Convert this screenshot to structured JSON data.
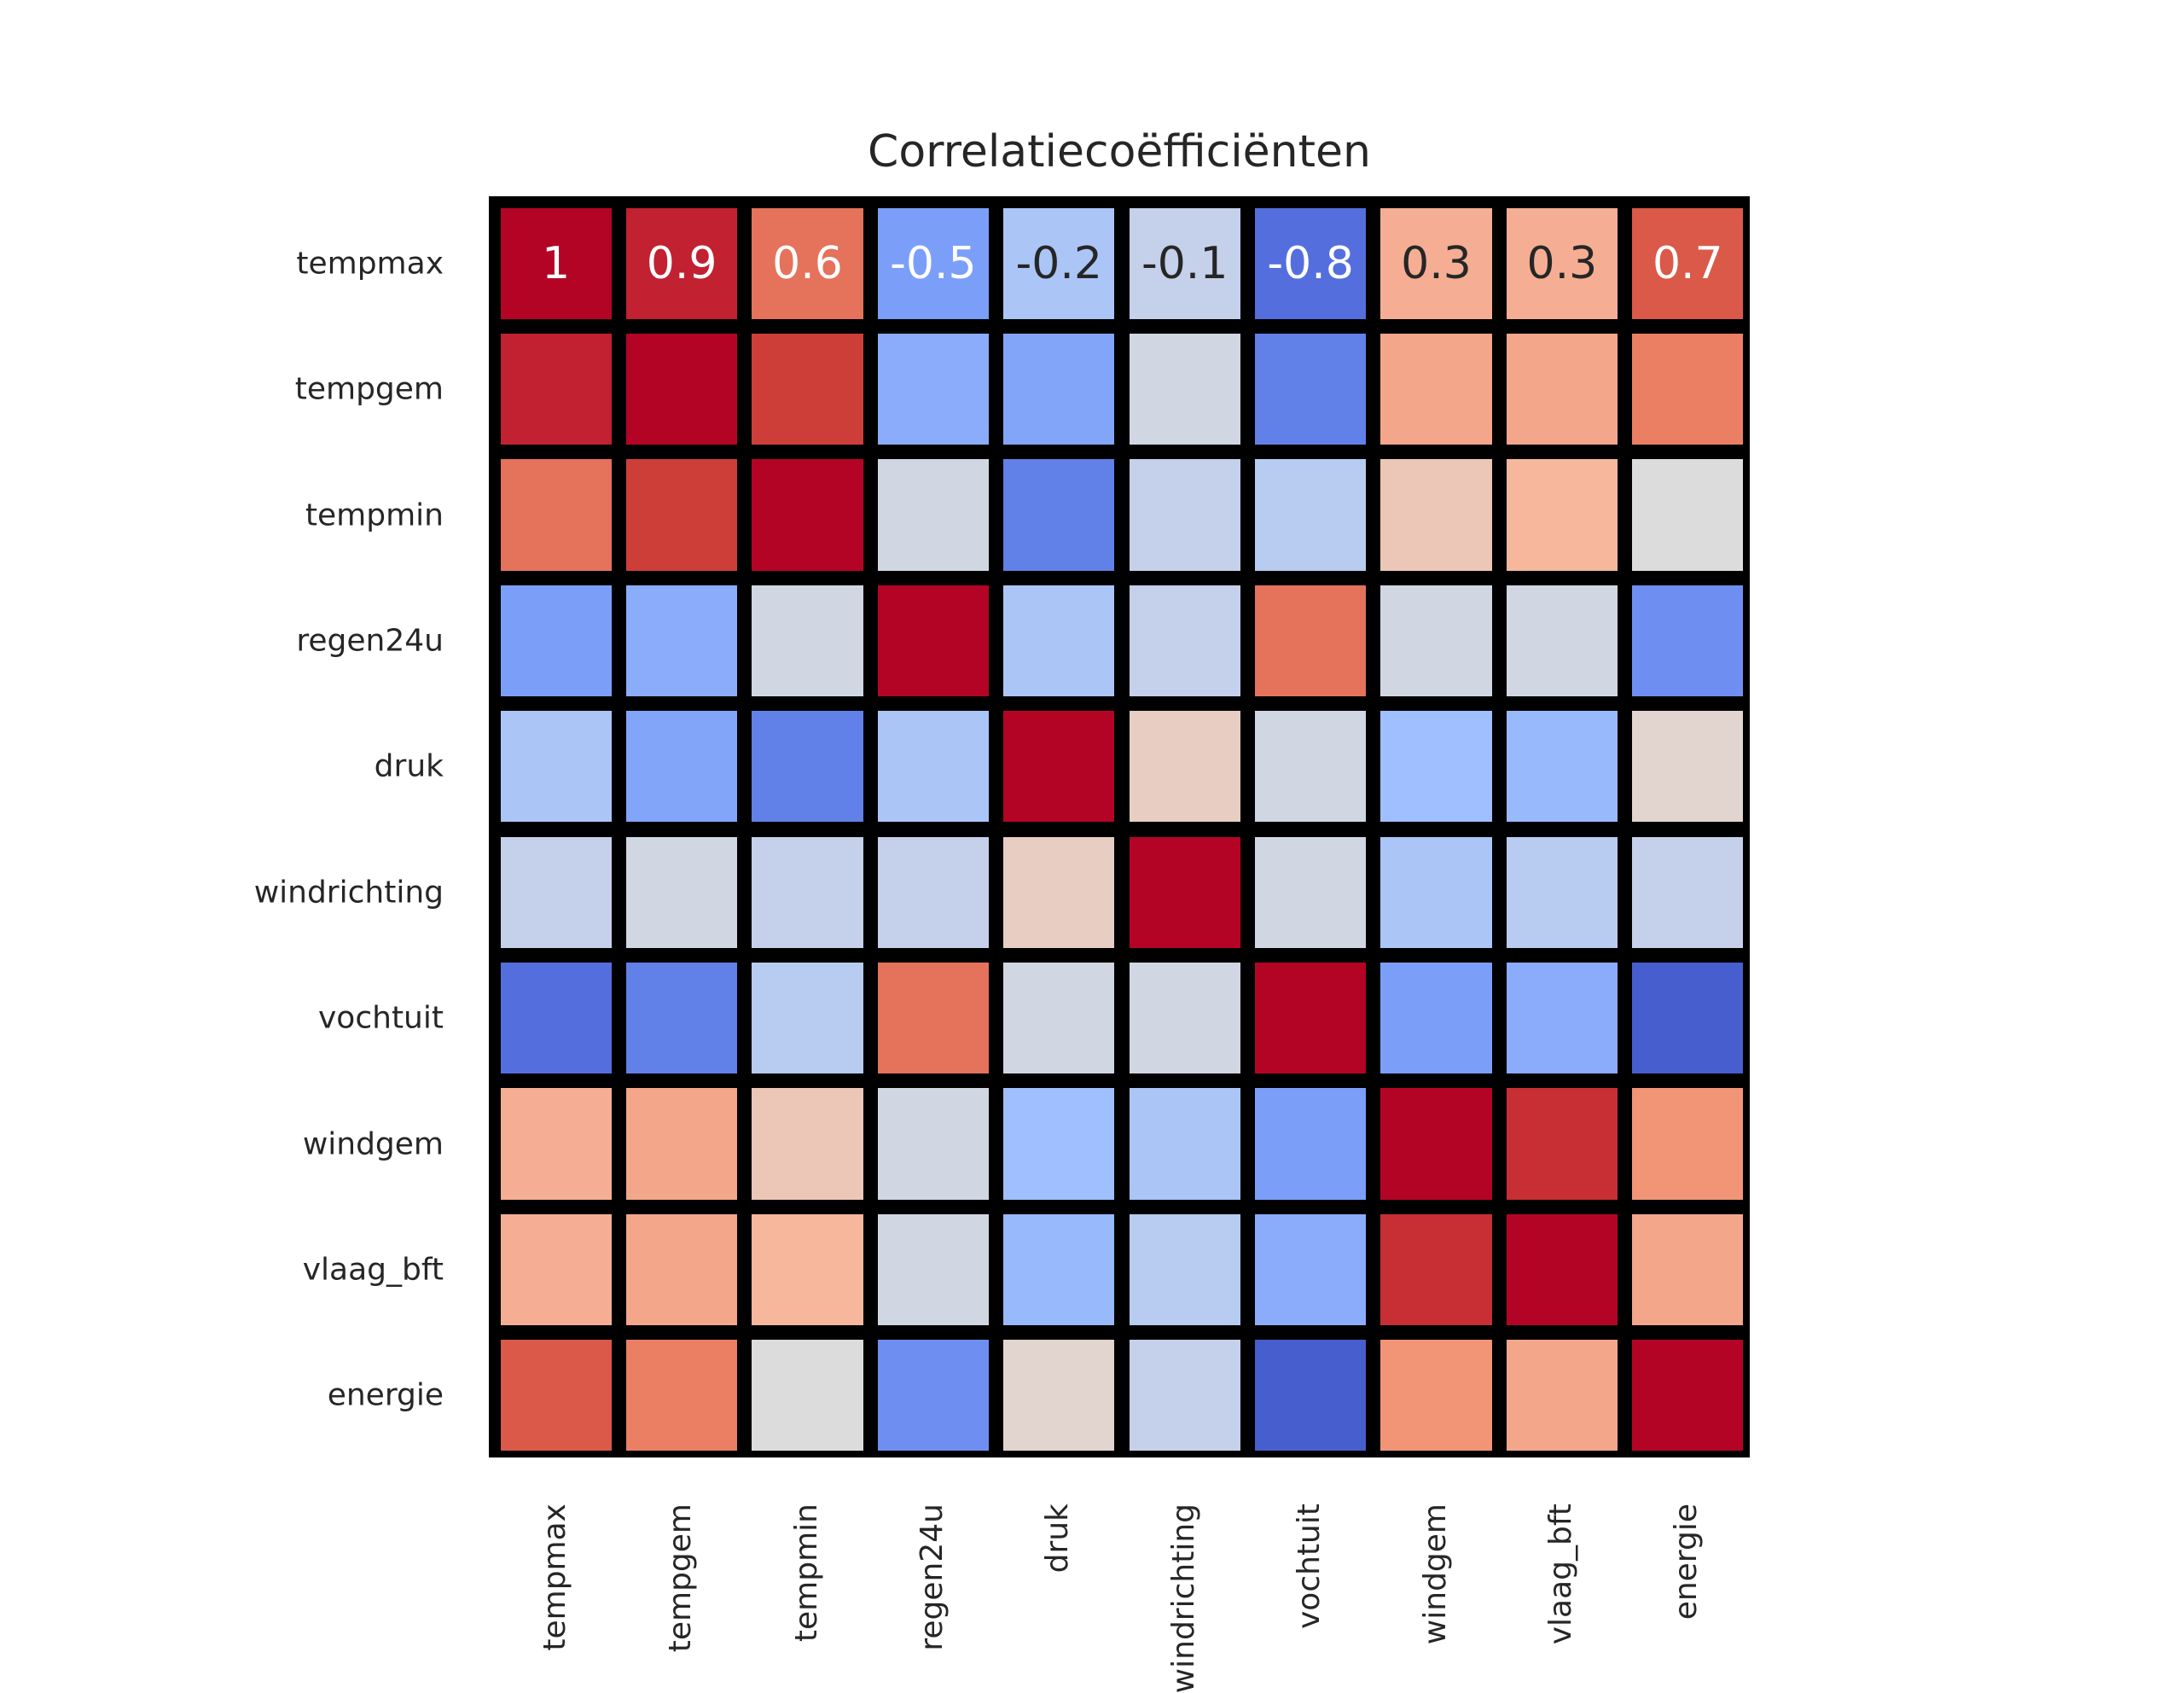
{
  "chart_data": {
    "type": "heatmap",
    "title": "Correlatiecoëfficiënten",
    "colormap": "coolwarm",
    "vlim": [
      -1,
      1
    ],
    "row_labels": [
      "tempmax",
      "tempgem",
      "tempmin",
      "regen24u",
      "druk",
      "windrichting",
      "vochtuit",
      "windgem",
      "vlaag_bft",
      "energie"
    ],
    "col_labels": [
      "tempmax",
      "tempgem",
      "tempmin",
      "regen24u",
      "druk",
      "windrichting",
      "vochtuit",
      "windgem",
      "vlaag_bft",
      "energie"
    ],
    "annotated_rows": [
      0
    ],
    "annotations": [
      "1",
      "0.9",
      "0.6",
      "-0.5",
      "-0.2",
      "-0.1",
      "-0.8",
      "0.3",
      "0.3",
      "0.7"
    ],
    "values": [
      [
        1,
        0.9,
        0.6,
        -0.5,
        -0.2,
        -0.1,
        -0.8,
        0.3,
        0.3,
        0.7
      ],
      [
        0.9,
        1,
        0.8,
        -0.4,
        -0.45,
        -0.05,
        -0.7,
        0.35,
        0.35,
        0.55
      ],
      [
        0.6,
        0.8,
        1,
        -0.05,
        -0.7,
        -0.1,
        -0.15,
        0.15,
        0.25,
        0.0
      ],
      [
        -0.5,
        -0.4,
        -0.05,
        1,
        -0.2,
        -0.1,
        0.6,
        -0.05,
        -0.05,
        -0.6
      ],
      [
        -0.2,
        -0.45,
        -0.7,
        -0.2,
        1,
        0.1,
        -0.05,
        -0.25,
        -0.3,
        0.05
      ],
      [
        -0.1,
        -0.05,
        -0.1,
        -0.1,
        0.1,
        1,
        -0.05,
        -0.2,
        -0.15,
        -0.1
      ],
      [
        -0.8,
        -0.7,
        -0.15,
        0.6,
        -0.05,
        -0.05,
        1,
        -0.5,
        -0.4,
        -0.9
      ],
      [
        0.3,
        0.35,
        0.15,
        -0.05,
        -0.25,
        -0.2,
        -0.5,
        1,
        0.85,
        0.45
      ],
      [
        0.3,
        0.35,
        0.25,
        -0.05,
        -0.3,
        -0.15,
        -0.4,
        0.85,
        1,
        0.35
      ],
      [
        0.7,
        0.55,
        0.0,
        -0.6,
        0.05,
        -0.1,
        -0.9,
        0.45,
        0.35,
        1
      ]
    ]
  }
}
